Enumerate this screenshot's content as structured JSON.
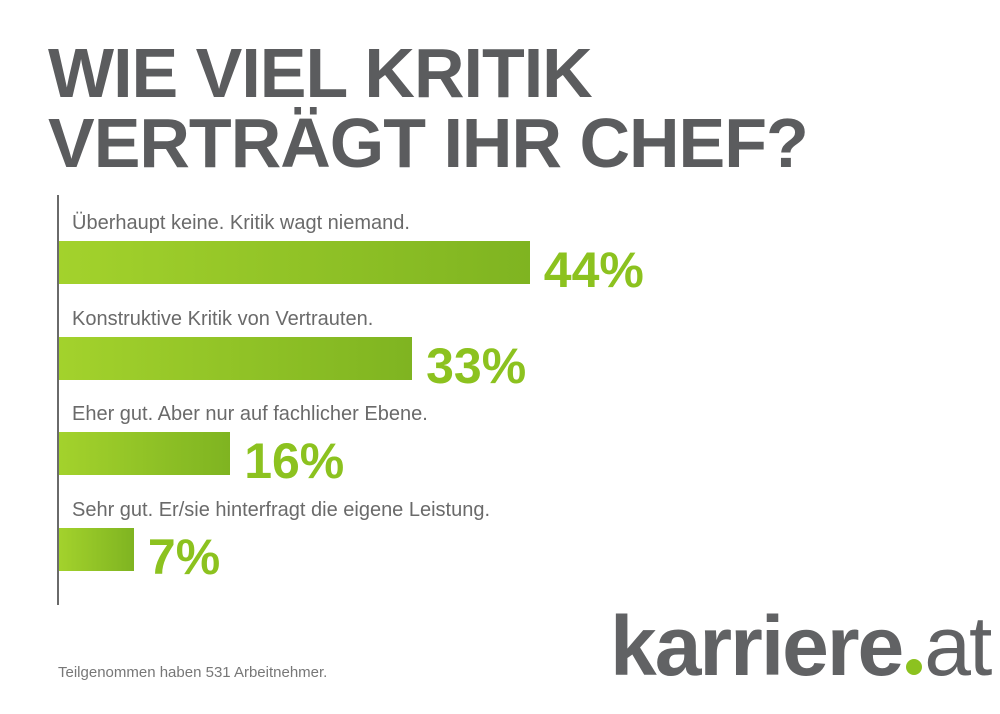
{
  "chart_data": {
    "type": "bar",
    "orientation": "horizontal",
    "title": "WIE VIEL KRITIK VERTRÄGT IHR CHEF?",
    "title_lines": [
      "WIE VIEL KRITIK",
      "VERTRÄGT IHR CHEF?"
    ],
    "categories": [
      "Überhaupt keine. Kritik wagt niemand.",
      "Konstruktive Kritik von Vertrauten.",
      "Eher gut. Aber nur auf fachlicher Ebene.",
      "Sehr gut. Er/sie hinterfragt die eigene Leistung."
    ],
    "values": [
      44,
      33,
      16,
      7
    ],
    "value_labels": [
      "44%",
      "33%",
      "16%",
      "7%"
    ],
    "xlim": [
      0,
      50
    ],
    "bar_colors": [
      "#a3d22c",
      "#7fb421"
    ],
    "value_color": "#8cc21f"
  },
  "footer": "Teilgenommen haben 531 Arbeitnehmer.",
  "logo": {
    "main": "karriere",
    "suffix": "at",
    "dot_color": "#8cc21f"
  }
}
